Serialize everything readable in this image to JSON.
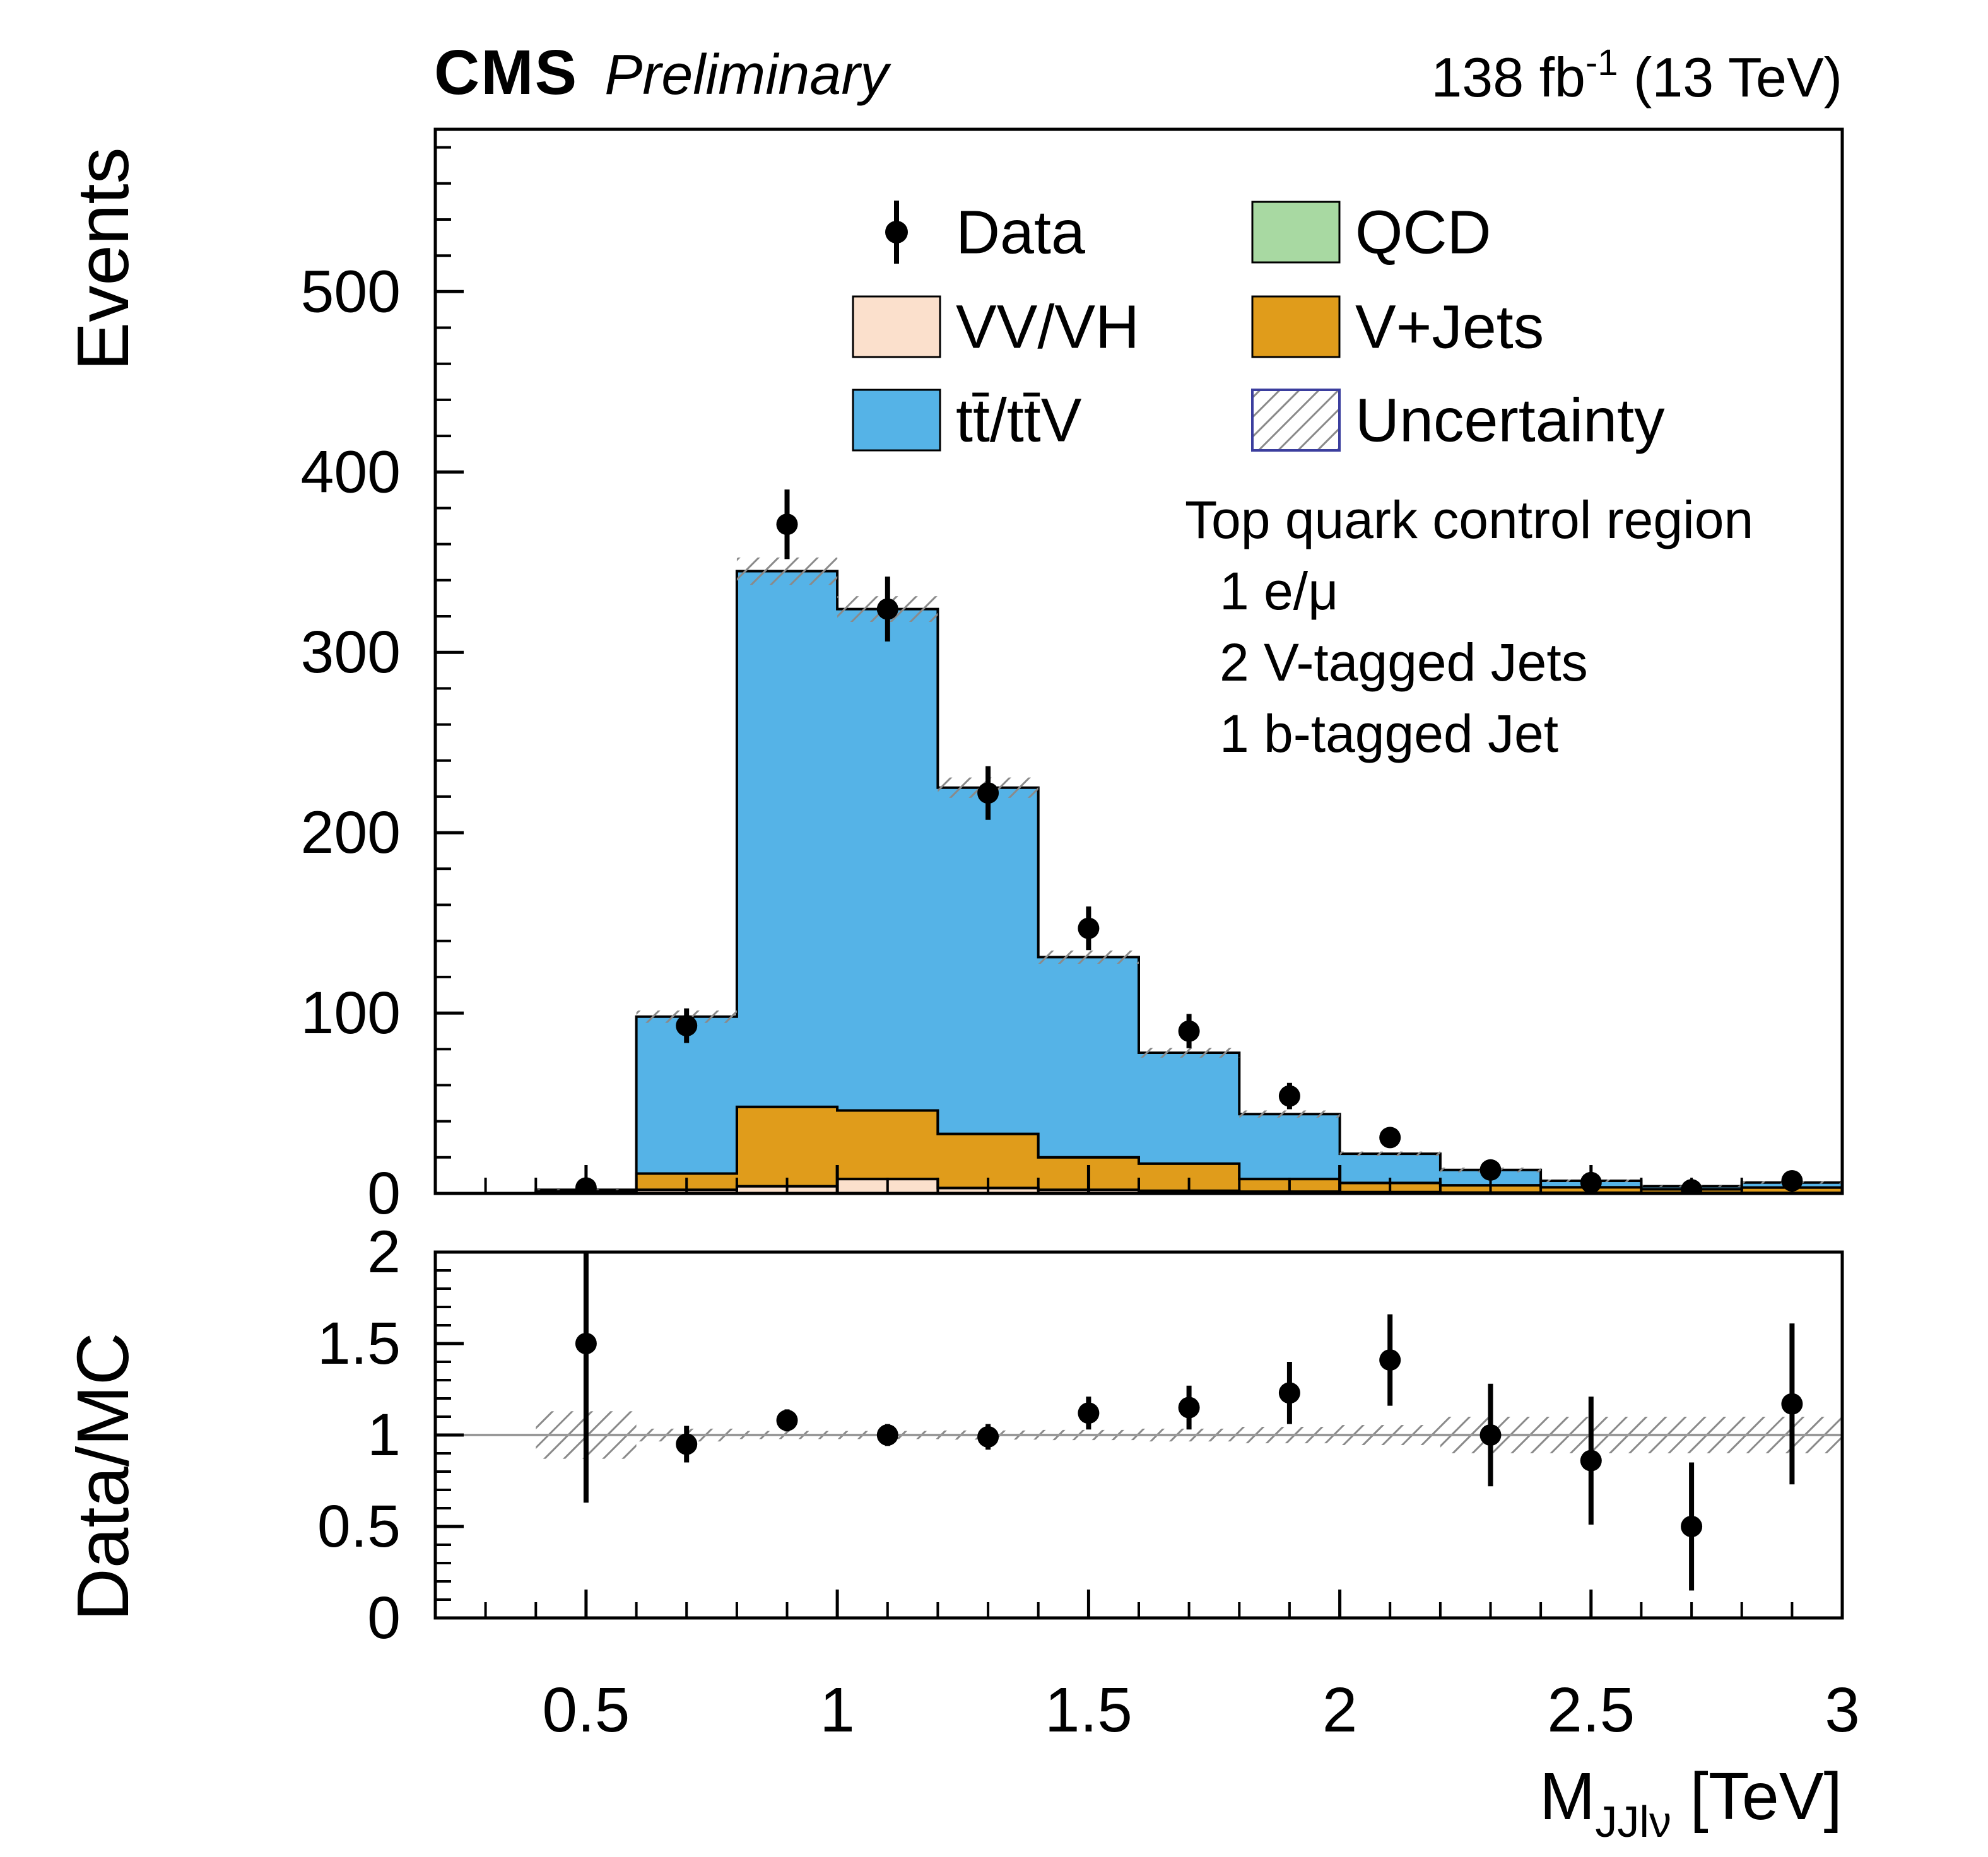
{
  "header": {
    "experiment": "CMS",
    "status": "Preliminary",
    "lumi_value": "138 fb",
    "lumi_exponent": "-1",
    "lumi_energy": " (13 TeV)"
  },
  "annotation": {
    "title": "Top quark control region",
    "lines": [
      "1 e/μ",
      "2 V-tagged Jets",
      "1 b-tagged Jet"
    ]
  },
  "axes": {
    "ylabel": "Events",
    "ratio_ylabel": "Data/MC",
    "xlabel_main": "M",
    "xlabel_sub": "JJlν",
    "xlabel_unit": " [TeV]"
  },
  "colors": {
    "ttbar_blue": "#55B3E7",
    "vjets_orange": "#E09C1B",
    "vvvh_peach": "#FBE0CC",
    "qcd_green": "#A8D9A2",
    "hatch": "#8A8A8A",
    "uncertainty_border": "#3B3E9E",
    "ratio_line": "#999999",
    "marker": "#000000"
  },
  "chart_data": {
    "type": "bar",
    "style": "stacked-histogram-with-ratio-panel",
    "title": "CMS Preliminary, Top quark control region",
    "xlabel": "M_JJlν [TeV]",
    "ylabel": "Events",
    "ratio_ylabel": "Data/MC",
    "xlim": [
      0.2,
      3.0
    ],
    "ylim": [
      0,
      590
    ],
    "ratio_ylim": [
      0,
      2
    ],
    "x_tick_values": [
      0.5,
      1,
      1.5,
      2,
      2.5,
      3
    ],
    "x_tick_labels": [
      "0.5",
      "1",
      "1.5",
      "2",
      "2.5",
      "3"
    ],
    "y_tick_values": [
      0,
      100,
      200,
      300,
      400,
      500
    ],
    "y_tick_labels": [
      "0",
      "100",
      "200",
      "300",
      "400",
      "500"
    ],
    "ratio_tick_values": [
      0,
      0.5,
      1,
      1.5,
      2
    ],
    "ratio_tick_labels": [
      "0",
      "0.5",
      "1",
      "1.5",
      "2"
    ],
    "bin_edges": [
      0.2,
      0.4,
      0.6,
      0.8,
      1.0,
      1.2,
      1.4,
      1.6,
      1.8,
      2.0,
      2.2,
      2.4,
      2.6,
      2.8,
      3.0
    ],
    "series": [
      {
        "name": "QCD",
        "color": "#A8D9A2",
        "values": [
          0,
          0,
          0,
          0,
          0,
          0,
          0,
          0,
          0,
          0,
          0,
          0,
          0,
          0
        ]
      },
      {
        "name": "VV/VH",
        "color": "#FBE0CC",
        "values": [
          0,
          0.3,
          2,
          4,
          8,
          3,
          2,
          1.5,
          1,
          0.8,
          0.5,
          0.4,
          0.3,
          0.3
        ]
      },
      {
        "name": "V+Jets",
        "color": "#E09C1B",
        "values": [
          0,
          0.7,
          9,
          44,
          38,
          30,
          18,
          15,
          7,
          5,
          4,
          3,
          2,
          3
        ]
      },
      {
        "name": "tt̄/tt̄V",
        "color": "#55B3E7",
        "values": [
          0,
          1,
          87,
          297,
          278,
          192,
          111,
          61.5,
          36,
          16.2,
          8.5,
          3.6,
          1.7,
          2.7
        ]
      }
    ],
    "mc_total": [
      0,
      2,
      98,
      345,
      324,
      225,
      131,
      78,
      44,
      22,
      13,
      7,
      4,
      6
    ],
    "mc_rel_unc": [
      0,
      0.13,
      0.035,
      0.022,
      0.022,
      0.025,
      0.028,
      0.035,
      0.045,
      0.055,
      0.1,
      0.1,
      0.1,
      0.1
    ],
    "data_points": {
      "x": [
        0.5,
        0.7,
        0.9,
        1.1,
        1.3,
        1.5,
        1.7,
        1.9,
        2.1,
        2.3,
        2.5,
        2.7,
        2.9
      ],
      "y": [
        3,
        93,
        371,
        324,
        222,
        147,
        90,
        54,
        31,
        13,
        6,
        2,
        7
      ],
      "yerr": [
        1.7,
        9.6,
        19.3,
        18.0,
        14.9,
        12.1,
        9.5,
        7.3,
        5.6,
        3.6,
        2.4,
        1.4,
        2.6
      ]
    },
    "ratio_points": {
      "x": [
        0.5,
        0.7,
        0.9,
        1.1,
        1.3,
        1.5,
        1.7,
        1.9,
        2.1,
        2.3,
        2.5,
        2.7,
        2.9
      ],
      "y": [
        1.5,
        0.95,
        1.08,
        1.0,
        0.99,
        1.12,
        1.15,
        1.23,
        1.41,
        1.0,
        0.86,
        0.5,
        1.17
      ],
      "yerr": [
        0.87,
        0.1,
        0.06,
        0.06,
        0.07,
        0.09,
        0.12,
        0.17,
        0.25,
        0.28,
        0.35,
        0.35,
        0.44
      ]
    },
    "legend": [
      {
        "label": "Data",
        "type": "marker"
      },
      {
        "label": "VV/VH",
        "type": "fill",
        "color": "#FBE0CC"
      },
      {
        "label": "tt̄/tt̄V",
        "type": "fill",
        "color": "#55B3E7"
      },
      {
        "label": "QCD",
        "type": "fill",
        "color": "#A8D9A2"
      },
      {
        "label": "V+Jets",
        "type": "fill",
        "color": "#E09C1B"
      },
      {
        "label": "Uncertainty",
        "type": "hatch"
      }
    ],
    "legend_position": "upper-center-right",
    "grid": false
  }
}
